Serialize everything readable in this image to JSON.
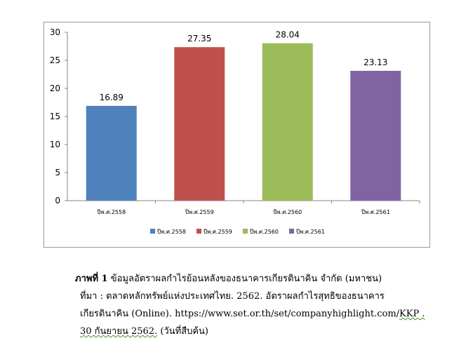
{
  "chart_data": {
    "type": "bar",
    "categories": [
      "ปีพ.ศ.2558",
      "ปีพ.ศ.2559",
      "ปีพ.ศ.2560",
      "ปีพ.ศ.2561"
    ],
    "values": [
      16.89,
      27.35,
      28.04,
      23.13
    ],
    "data_labels": [
      "16.89",
      "27.35",
      "28.04",
      "23.13"
    ],
    "colors": [
      "#4f81bd",
      "#c0504d",
      "#9bbb59",
      "#8064a2"
    ],
    "ylim": [
      0,
      30
    ],
    "yticks": [
      0,
      5,
      10,
      15,
      20,
      25,
      30
    ],
    "grid": false,
    "legend": {
      "placement": "bottom",
      "entries": [
        "ปีพ.ศ.2558",
        "ปีพ.ศ.2559",
        "ปีพ.ศ.2560",
        "ปีพ.ศ.2561"
      ]
    }
  },
  "caption": {
    "figure_label": "ภาพที่  1",
    "title": "ข้อมูลอัตราผลกำไรย้อนหลังของธนาคารเกียรตินาคิน  จำกัด (มหาชน)",
    "source_label": "ที่มา :",
    "source_line1": "ตลาดหลักทรัพย์แห่งประเทศไทย.  2562. อัตราผลกำไรสุทธิของธนาคาร",
    "source_line2_a": "เกียรตินาคิน (Online). https://www.set.or.th/set/companyhighlight.com/",
    "source_line2_b": "KKP .",
    "source_line3_a": "30 กันยายน  2562.",
    "source_line3_b": " (วันที่สืบค้น)"
  }
}
